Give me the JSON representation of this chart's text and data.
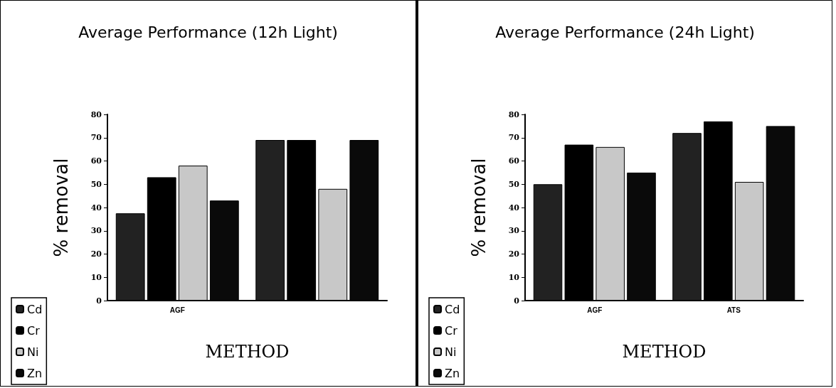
{
  "chart_data": [
    {
      "type": "bar",
      "title": "Average Performance (12h Light)",
      "xlabel": "METHOD",
      "ylabel": "% removal",
      "categories": [
        "AGF",
        null
      ],
      "series": [
        {
          "name": "Cd",
          "color": "#222222",
          "values": [
            37.5,
            69
          ]
        },
        {
          "name": "Cr",
          "color": "#000000",
          "values": [
            53,
            69
          ]
        },
        {
          "name": "Ni",
          "color": "#c8c8c8",
          "values": [
            58,
            48
          ]
        },
        {
          "name": "Zn",
          "color": "#0a0a0a",
          "values": [
            43,
            69
          ]
        }
      ],
      "ylim": [
        0,
        80
      ],
      "yticks": [
        0,
        10,
        20,
        30,
        40,
        50,
        60,
        70,
        80
      ],
      "grid": false,
      "legend": "bottom left"
    },
    {
      "type": "bar",
      "title": "Average Performance (24h Light)",
      "xlabel": "METHOD",
      "ylabel": "% removal",
      "categories": [
        "AGF",
        "ATS"
      ],
      "series": [
        {
          "name": "Cd",
          "color": "#222222",
          "values": [
            50,
            72
          ]
        },
        {
          "name": "Cr",
          "color": "#000000",
          "values": [
            67,
            77
          ]
        },
        {
          "name": "Ni",
          "color": "#c8c8c8",
          "values": [
            66,
            51
          ]
        },
        {
          "name": "Zn",
          "color": "#0a0a0a",
          "values": [
            55,
            75
          ]
        }
      ],
      "ylim": [
        0,
        80
      ],
      "yticks": [
        0,
        10,
        20,
        30,
        40,
        50,
        60,
        70,
        80
      ],
      "grid": false,
      "legend": "bottom left"
    }
  ]
}
